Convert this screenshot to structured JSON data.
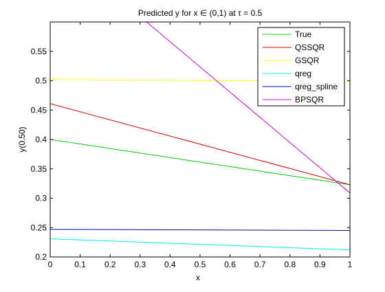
{
  "chart_data": {
    "type": "line",
    "title": "Predicted y for x ∈ (0,1) at τ = 0.5",
    "xlabel": "x",
    "ylabel": "y(0.50)",
    "xlim": [
      0,
      1
    ],
    "ylim": [
      0.2,
      0.6
    ],
    "xticks": [
      0,
      0.1,
      0.2,
      0.3,
      0.4,
      0.5,
      0.6,
      0.7,
      0.8,
      0.9,
      1
    ],
    "xtick_labels": [
      "0",
      "0.1",
      "0.2",
      "0.3",
      "0.4",
      "0.5",
      "0.6",
      "0.7",
      "0.8",
      "0.9",
      "1"
    ],
    "yticks": [
      0.2,
      0.25,
      0.3,
      0.35,
      0.4,
      0.45,
      0.5,
      0.55
    ],
    "ytick_labels": [
      "0.2",
      "0.25",
      "0.3",
      "0.35",
      "0.4",
      "0.45",
      "0.5",
      "0.55"
    ],
    "grid": false,
    "legend_position": "top-right",
    "series": [
      {
        "name": "True",
        "color": "#00cc00",
        "x": [
          0,
          1
        ],
        "y": [
          0.4,
          0.323
        ]
      },
      {
        "name": "QSSQR",
        "color": "#cc0000",
        "x": [
          0,
          1
        ],
        "y": [
          0.461,
          0.323
        ]
      },
      {
        "name": "GSQR",
        "color": "#ffff00",
        "x": [
          0,
          1
        ],
        "y": [
          0.502,
          0.499
        ]
      },
      {
        "name": "qreg",
        "color": "#00e6e6",
        "x": [
          0,
          1
        ],
        "y": [
          0.231,
          0.212
        ]
      },
      {
        "name": "qreg_spline",
        "color": "#0000aa",
        "x": [
          0,
          1
        ],
        "y": [
          0.247,
          0.245
        ]
      },
      {
        "name": "BPSQR",
        "color": "#cc00cc",
        "x": [
          0,
          1
        ],
        "y": [
          0.738,
          0.309
        ]
      }
    ]
  }
}
